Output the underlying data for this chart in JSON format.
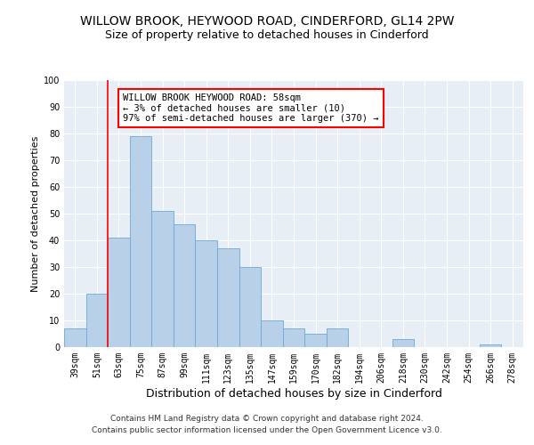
{
  "title": "WILLOW BROOK, HEYWOOD ROAD, CINDERFORD, GL14 2PW",
  "subtitle": "Size of property relative to detached houses in Cinderford",
  "xlabel": "Distribution of detached houses by size in Cinderford",
  "ylabel": "Number of detached properties",
  "categories": [
    "39sqm",
    "51sqm",
    "63sqm",
    "75sqm",
    "87sqm",
    "99sqm",
    "111sqm",
    "123sqm",
    "135sqm",
    "147sqm",
    "159sqm",
    "170sqm",
    "182sqm",
    "194sqm",
    "206sqm",
    "218sqm",
    "230sqm",
    "242sqm",
    "254sqm",
    "266sqm",
    "278sqm"
  ],
  "values": [
    7,
    20,
    41,
    79,
    51,
    46,
    40,
    37,
    30,
    10,
    7,
    5,
    7,
    0,
    0,
    3,
    0,
    0,
    0,
    1,
    0
  ],
  "bar_color": "#b8d0e8",
  "bar_edgecolor": "#6aaad4",
  "marker_line_index": 1.5,
  "marker_label_line1": "WILLOW BROOK HEYWOOD ROAD: 58sqm",
  "marker_label_line2": "← 3% of detached houses are smaller (10)",
  "marker_label_line3": "97% of semi-detached houses are larger (370) →",
  "ylim": [
    0,
    100
  ],
  "yticks": [
    0,
    10,
    20,
    30,
    40,
    50,
    60,
    70,
    80,
    90,
    100
  ],
  "background_color": "#e8eef5",
  "grid_color": "#ffffff",
  "footer_line1": "Contains HM Land Registry data © Crown copyright and database right 2024.",
  "footer_line2": "Contains public sector information licensed under the Open Government Licence v3.0.",
  "title_fontsize": 10,
  "subtitle_fontsize": 9,
  "xlabel_fontsize": 9,
  "ylabel_fontsize": 8,
  "tick_fontsize": 7,
  "annotation_fontsize": 7.5,
  "footer_fontsize": 6.5
}
